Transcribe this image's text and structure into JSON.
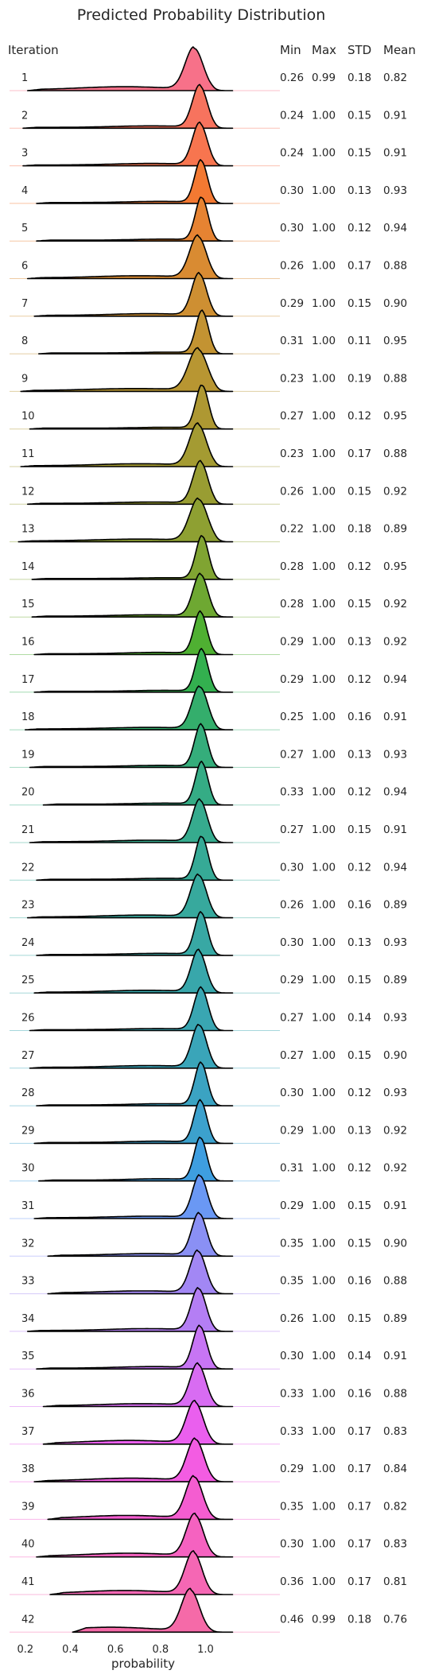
{
  "chart_data": {
    "type": "ridgeline",
    "title": "Predicted Probability Distribution",
    "ylabel": "Iteration",
    "xlabel": "probability",
    "xticks": [
      "0.2",
      "0.4",
      "0.6",
      "0.8",
      "1.0"
    ],
    "xlim": [
      0.13,
      1.33
    ],
    "stat_headers": [
      "Min",
      "Max",
      "STD",
      "Mean"
    ],
    "rows": [
      {
        "iteration": "1",
        "min": "0.26",
        "max": "0.99",
        "std": "0.18",
        "mean": "0.82",
        "color": "#f77189"
      },
      {
        "iteration": "2",
        "min": "0.24",
        "max": "1.00",
        "std": "0.15",
        "mean": "0.91",
        "color": "#f7735e"
      },
      {
        "iteration": "3",
        "min": "0.24",
        "max": "1.00",
        "std": "0.15",
        "mean": "0.91",
        "color": "#f7754f"
      },
      {
        "iteration": "4",
        "min": "0.30",
        "max": "1.00",
        "std": "0.13",
        "mean": "0.93",
        "color": "#f37932"
      },
      {
        "iteration": "5",
        "min": "0.30",
        "max": "1.00",
        "std": "0.12",
        "mean": "0.94",
        "color": "#e68332"
      },
      {
        "iteration": "6",
        "min": "0.26",
        "max": "1.00",
        "std": "0.17",
        "mean": "0.88",
        "color": "#d98b32"
      },
      {
        "iteration": "7",
        "min": "0.29",
        "max": "1.00",
        "std": "0.15",
        "mean": "0.90",
        "color": "#ce8f32"
      },
      {
        "iteration": "8",
        "min": "0.31",
        "max": "1.00",
        "std": "0.11",
        "mean": "0.95",
        "color": "#c39332"
      },
      {
        "iteration": "9",
        "min": "0.23",
        "max": "1.00",
        "std": "0.19",
        "mean": "0.88",
        "color": "#b89632"
      },
      {
        "iteration": "10",
        "min": "0.27",
        "max": "1.00",
        "std": "0.12",
        "mean": "0.95",
        "color": "#ae9832"
      },
      {
        "iteration": "11",
        "min": "0.23",
        "max": "1.00",
        "std": "0.17",
        "mean": "0.88",
        "color": "#a49b32"
      },
      {
        "iteration": "12",
        "min": "0.26",
        "max": "1.00",
        "std": "0.15",
        "mean": "0.92",
        "color": "#999d32"
      },
      {
        "iteration": "13",
        "min": "0.22",
        "max": "1.00",
        "std": "0.18",
        "mean": "0.89",
        "color": "#8ea032"
      },
      {
        "iteration": "14",
        "min": "0.28",
        "max": "1.00",
        "std": "0.12",
        "mean": "0.95",
        "color": "#80a432"
      },
      {
        "iteration": "15",
        "min": "0.28",
        "max": "1.00",
        "std": "0.15",
        "mean": "0.92",
        "color": "#6ea832"
      },
      {
        "iteration": "16",
        "min": "0.29",
        "max": "1.00",
        "std": "0.13",
        "mean": "0.92",
        "color": "#4fb032"
      },
      {
        "iteration": "17",
        "min": "0.29",
        "max": "1.00",
        "std": "0.12",
        "mean": "0.94",
        "color": "#33b04f"
      },
      {
        "iteration": "18",
        "min": "0.25",
        "max": "1.00",
        "std": "0.16",
        "mean": "0.91",
        "color": "#34ae6c"
      },
      {
        "iteration": "19",
        "min": "0.27",
        "max": "1.00",
        "std": "0.13",
        "mean": "0.93",
        "color": "#35ad7b"
      },
      {
        "iteration": "20",
        "min": "0.33",
        "max": "1.00",
        "std": "0.12",
        "mean": "0.94",
        "color": "#35ac85"
      },
      {
        "iteration": "21",
        "min": "0.27",
        "max": "1.00",
        "std": "0.15",
        "mean": "0.91",
        "color": "#36ab8e"
      },
      {
        "iteration": "22",
        "min": "0.30",
        "max": "1.00",
        "std": "0.12",
        "mean": "0.94",
        "color": "#36aa96"
      },
      {
        "iteration": "23",
        "min": "0.26",
        "max": "1.00",
        "std": "0.16",
        "mean": "0.89",
        "color": "#37a99d"
      },
      {
        "iteration": "24",
        "min": "0.30",
        "max": "1.00",
        "std": "0.13",
        "mean": "0.93",
        "color": "#38a8a4"
      },
      {
        "iteration": "25",
        "min": "0.29",
        "max": "1.00",
        "std": "0.15",
        "mean": "0.89",
        "color": "#38a7ab"
      },
      {
        "iteration": "26",
        "min": "0.27",
        "max": "1.00",
        "std": "0.14",
        "mean": "0.93",
        "color": "#39a6b2"
      },
      {
        "iteration": "27",
        "min": "0.27",
        "max": "1.00",
        "std": "0.15",
        "mean": "0.90",
        "color": "#3aa5b9"
      },
      {
        "iteration": "28",
        "min": "0.30",
        "max": "1.00",
        "std": "0.12",
        "mean": "0.93",
        "color": "#3ba3c2"
      },
      {
        "iteration": "29",
        "min": "0.29",
        "max": "1.00",
        "std": "0.13",
        "mean": "0.92",
        "color": "#3ca1cd"
      },
      {
        "iteration": "30",
        "min": "0.31",
        "max": "1.00",
        "std": "0.12",
        "mean": "0.92",
        "color": "#3e9ee0"
      },
      {
        "iteration": "31",
        "min": "0.29",
        "max": "1.00",
        "std": "0.15",
        "mean": "0.91",
        "color": "#6a98f4"
      },
      {
        "iteration": "32",
        "min": "0.35",
        "max": "1.00",
        "std": "0.15",
        "mean": "0.90",
        "color": "#8a90f4"
      },
      {
        "iteration": "33",
        "min": "0.35",
        "max": "1.00",
        "std": "0.16",
        "mean": "0.88",
        "color": "#a287f4"
      },
      {
        "iteration": "34",
        "min": "0.26",
        "max": "1.00",
        "std": "0.15",
        "mean": "0.89",
        "color": "#b47ef4"
      },
      {
        "iteration": "35",
        "min": "0.30",
        "max": "1.00",
        "std": "0.14",
        "mean": "0.91",
        "color": "#c775f4"
      },
      {
        "iteration": "36",
        "min": "0.33",
        "max": "1.00",
        "std": "0.16",
        "mean": "0.88",
        "color": "#d86cf2"
      },
      {
        "iteration": "37",
        "min": "0.33",
        "max": "1.00",
        "std": "0.17",
        "mean": "0.83",
        "color": "#ea5fee"
      },
      {
        "iteration": "38",
        "min": "0.29",
        "max": "1.00",
        "std": "0.17",
        "mean": "0.84",
        "color": "#f35ce2"
      },
      {
        "iteration": "39",
        "min": "0.35",
        "max": "1.00",
        "std": "0.17",
        "mean": "0.82",
        "color": "#f45dd0"
      },
      {
        "iteration": "40",
        "min": "0.30",
        "max": "1.00",
        "std": "0.17",
        "mean": "0.83",
        "color": "#f562c0"
      },
      {
        "iteration": "41",
        "min": "0.36",
        "max": "1.00",
        "std": "0.17",
        "mean": "0.81",
        "color": "#f567b4"
      },
      {
        "iteration": "42",
        "min": "0.46",
        "max": "0.99",
        "std": "0.18",
        "mean": "0.76",
        "color": "#f56aa8"
      }
    ]
  }
}
